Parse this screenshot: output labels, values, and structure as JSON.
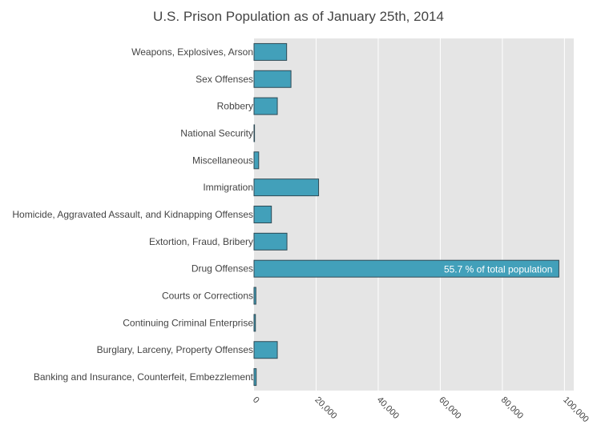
{
  "chart_data": {
    "type": "bar",
    "orientation": "horizontal",
    "title": "U.S. Prison Population as of January 25th, 2014",
    "categories": [
      "Weapons, Explosives, Arson",
      "Sex Offenses",
      "Robbery",
      "National Security",
      "Miscellaneous",
      "Immigration",
      "Homicide, Aggravated Assault, and Kidnapping Offenses",
      "Extortion, Fraud, Bribery",
      "Drug Offenses",
      "Courts or Corrections",
      "Continuing Criminal Enterprise",
      "Burglary, Larceny, Property Offenses",
      "Banking and Insurance, Counterfeit, Embezzlement"
    ],
    "values": [
      10500,
      11900,
      7500,
      70,
      1500,
      20800,
      5600,
      10600,
      98200,
      600,
      450,
      7500,
      700
    ],
    "xlim": [
      0,
      103000
    ],
    "xticks": [
      0,
      20000,
      40000,
      60000,
      80000,
      100000
    ],
    "xtick_labels": [
      "0",
      "20,000",
      "40,000",
      "60,000",
      "80,000",
      "100,000"
    ],
    "annotation": {
      "category": "Drug Offenses",
      "text": "55.7 % of total population"
    },
    "grid": true,
    "bar_color": "#42a0ba",
    "bar_edge_color": "#2e4a55",
    "plot_background": "#e5e5e5"
  }
}
